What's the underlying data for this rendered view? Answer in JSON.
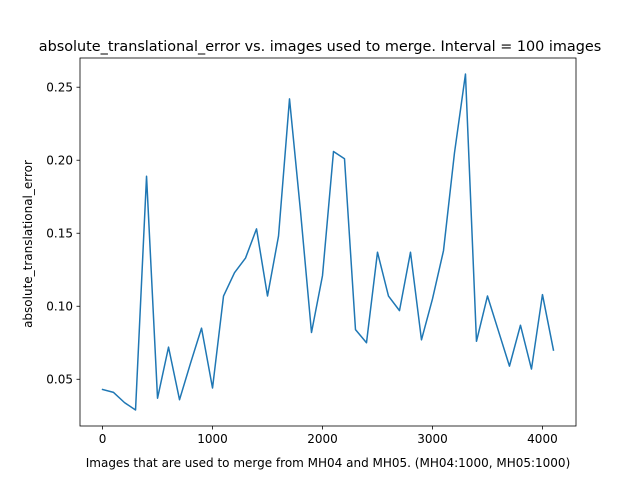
{
  "chart_data": {
    "type": "line",
    "title": "absolute_translational_error vs. images used to merge. Interval = 100 images",
    "xlabel": "Images that are used to merge from MH04 and MH05. (MH04:1000, MH05:1000)",
    "ylabel": "absolute_translational_error",
    "xlim": [
      -205,
      4305
    ],
    "ylim": [
      0.018,
      0.27
    ],
    "xticks": [
      0,
      1000,
      2000,
      3000,
      4000
    ],
    "xtick_labels": [
      "0",
      "1000",
      "2000",
      "3000",
      "4000"
    ],
    "yticks": [
      0.05,
      0.1,
      0.15,
      0.2,
      0.25
    ],
    "ytick_labels": [
      "0.05",
      "0.10",
      "0.15",
      "0.20",
      "0.25"
    ],
    "grid": false,
    "legend": "none",
    "line_color": "#1f77b4",
    "series": [
      {
        "x": [
          0,
          100,
          200,
          300,
          400,
          500,
          600,
          700,
          800,
          900,
          1000,
          1100,
          1200,
          1300,
          1400,
          1500,
          1600,
          1700,
          1800,
          1900,
          2000,
          2100,
          2200,
          2300,
          2400,
          2500,
          2600,
          2700,
          2800,
          2900,
          3000,
          3100,
          3200,
          3300,
          3400,
          3500,
          3600,
          3700,
          3800,
          3900,
          4000,
          4100
        ],
        "values": [
          0.043,
          0.041,
          0.034,
          0.029,
          0.189,
          0.037,
          0.072,
          0.036,
          0.061,
          0.085,
          0.044,
          0.107,
          0.123,
          0.133,
          0.153,
          0.107,
          0.148,
          0.242,
          0.165,
          0.082,
          0.121,
          0.206,
          0.201,
          0.084,
          0.075,
          0.137,
          0.107,
          0.097,
          0.137,
          0.077,
          0.105,
          0.138,
          0.205,
          0.259,
          0.076,
          0.107,
          0.083,
          0.059,
          0.087,
          0.057,
          0.108,
          0.07
        ]
      }
    ]
  }
}
